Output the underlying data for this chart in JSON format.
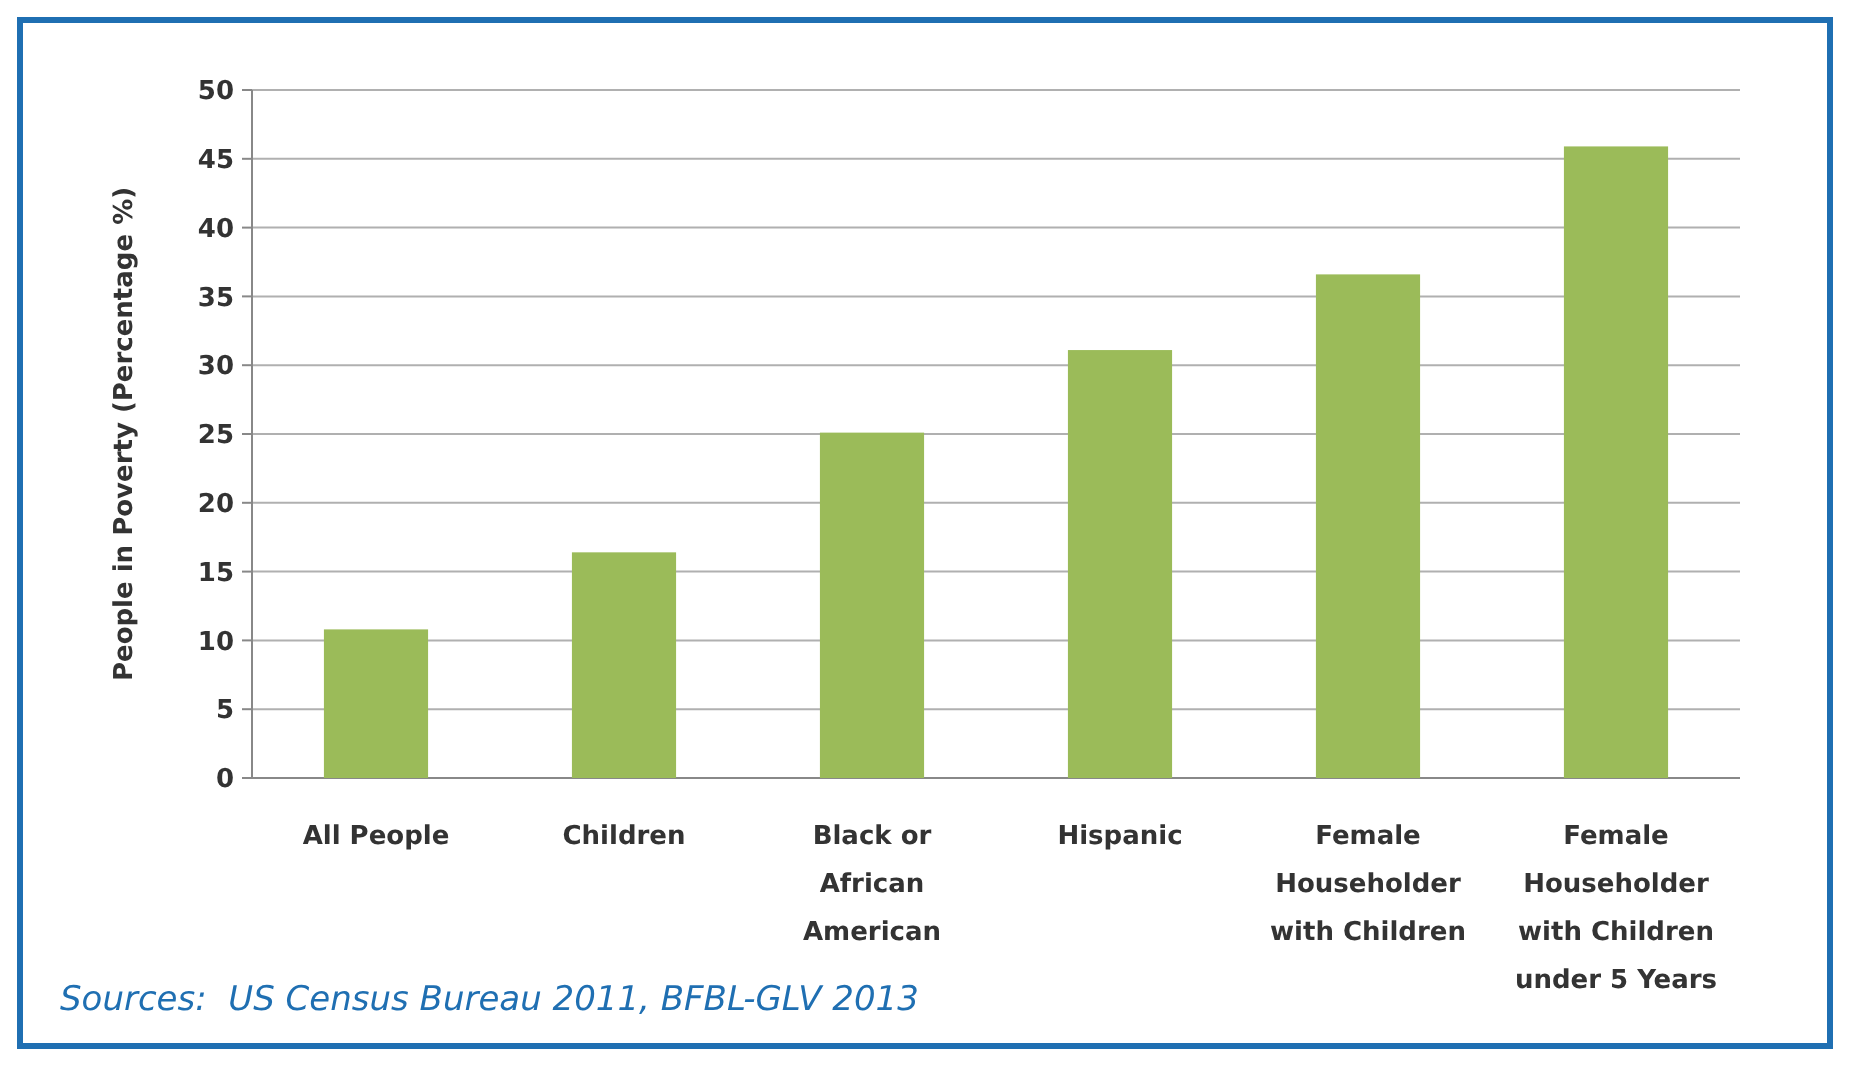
{
  "chart_data": {
    "type": "bar",
    "ylabel": "People in Poverty (Percentage %)",
    "categories": [
      "All People",
      "Children",
      "Black or African American",
      "Hispanic",
      "Female Householder with Children",
      "Female Householder with Children under 5 Years"
    ],
    "values": [
      10.8,
      16.4,
      25.1,
      31.1,
      36.6,
      45.9
    ],
    "color": "#9bbb59",
    "ylim": [
      0,
      50
    ],
    "yticks": [
      0,
      5,
      10,
      15,
      20,
      25,
      30,
      35,
      40,
      45,
      50
    ],
    "grid": "y",
    "annotations": [
      "Sources:  US Census Bureau 2011, BFBL-GLV 2013"
    ]
  }
}
